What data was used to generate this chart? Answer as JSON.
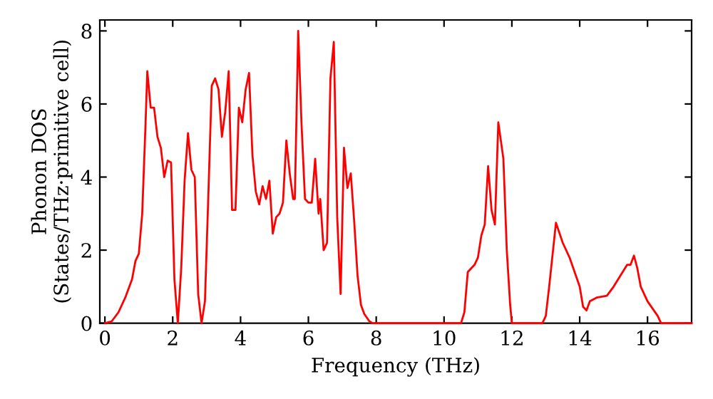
{
  "chart_data": {
    "type": "line",
    "xlabel": "Frequency (THz)",
    "ylabel": "Phonon DOS\n(States/THz·primitive cell)",
    "x": [
      0,
      0.2,
      0.4,
      0.6,
      0.8,
      0.9,
      1.0,
      1.1,
      1.2,
      1.25,
      1.35,
      1.45,
      1.55,
      1.65,
      1.75,
      1.85,
      1.95,
      2.05,
      2.15,
      2.25,
      2.35,
      2.45,
      2.55,
      2.65,
      2.75,
      2.85,
      2.95,
      3.05,
      3.15,
      3.25,
      3.35,
      3.45,
      3.55,
      3.65,
      3.75,
      3.85,
      3.95,
      4.05,
      4.15,
      4.25,
      4.35,
      4.45,
      4.55,
      4.65,
      4.75,
      4.85,
      4.95,
      5.05,
      5.15,
      5.25,
      5.35,
      5.45,
      5.55,
      5.6,
      5.7,
      5.8,
      5.9,
      6.0,
      6.1,
      6.2,
      6.3,
      6.35,
      6.45,
      6.55,
      6.65,
      6.75,
      6.85,
      6.95,
      7.05,
      7.15,
      7.25,
      7.35,
      7.45,
      7.55,
      7.65,
      7.8,
      7.9,
      10.5,
      10.6,
      10.7,
      10.9,
      11.0,
      11.1,
      11.2,
      11.3,
      11.4,
      11.5,
      11.6,
      11.75,
      11.85,
      11.95,
      12.0,
      12.9,
      13.0,
      13.1,
      13.3,
      13.5,
      13.7,
      14.0,
      14.1,
      14.2,
      14.3,
      14.5,
      14.8,
      15.0,
      15.4,
      15.5,
      15.6,
      15.7,
      15.8,
      16.0,
      16.3,
      16.4,
      17.3
    ],
    "series": [
      {
        "color": "#ff0000",
        "values": [
          0,
          0.05,
          0.3,
          0.7,
          1.2,
          1.7,
          1.9,
          3.0,
          5.5,
          6.9,
          5.9,
          5.9,
          5.1,
          4.8,
          4.0,
          4.45,
          4.4,
          1.2,
          0,
          1.5,
          3.9,
          5.2,
          4.2,
          4.0,
          0.8,
          0,
          0.6,
          3.5,
          6.5,
          6.7,
          6.4,
          5.1,
          5.8,
          6.9,
          3.1,
          3.1,
          5.9,
          5.5,
          6.4,
          6.85,
          4.6,
          3.6,
          3.25,
          3.75,
          3.4,
          3.9,
          2.45,
          2.9,
          3.0,
          3.3,
          5.0,
          4.1,
          3.4,
          3.4,
          8.0,
          5.4,
          3.4,
          3.3,
          3.3,
          4.5,
          3.0,
          3.4,
          2.0,
          2.2,
          6.7,
          7.7,
          2.9,
          0.8,
          4.8,
          3.7,
          4.1,
          2.8,
          1.3,
          0.5,
          0.25,
          0.05,
          0,
          0,
          0.3,
          1.4,
          1.6,
          1.8,
          2.4,
          2.7,
          4.3,
          3.1,
          2.7,
          5.5,
          4.5,
          2.0,
          0.5,
          0,
          0,
          0.2,
          1.0,
          2.75,
          2.2,
          1.8,
          1.0,
          0.45,
          0.35,
          0.6,
          0.7,
          0.75,
          1.0,
          1.6,
          1.6,
          1.85,
          1.5,
          1.0,
          0.6,
          0.2,
          0,
          0
        ]
      }
    ],
    "xlim": [
      -0.15,
      17.3
    ],
    "ylim": [
      0,
      8.3
    ],
    "xticks": [
      0,
      2,
      4,
      6,
      8,
      10,
      12,
      14,
      16
    ],
    "yticks": [
      0,
      2,
      4,
      6,
      8
    ],
    "line_style": "solid",
    "marker": "none",
    "grid": false,
    "legend": false
  }
}
